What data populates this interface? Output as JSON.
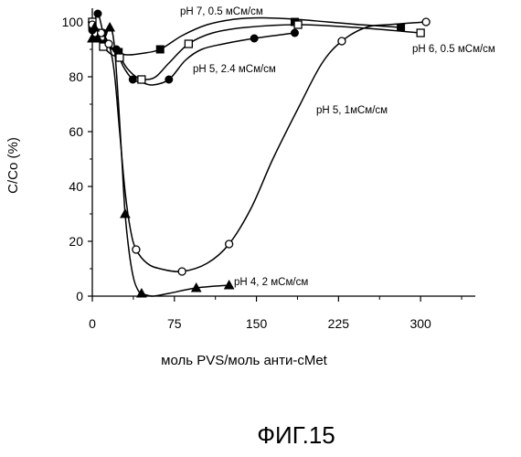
{
  "chart_data": {
    "type": "line",
    "xlabel": "моль PVS/моль анти-cMet",
    "ylabel": "C/Co (%)",
    "xlim": [
      0,
      350
    ],
    "ylim": [
      0,
      105
    ],
    "xticks": [
      "0",
      "75",
      "150",
      "225",
      "300"
    ],
    "yticks": [
      "0",
      "20",
      "40",
      "60",
      "80",
      "100"
    ],
    "grid": false,
    "series": [
      {
        "name": "pH 7, 0.5 мСм/см",
        "marker": "filled-square",
        "x": [
          0,
          3,
          12,
          24,
          62,
          185,
          282
        ],
        "y": [
          99,
          94,
          92,
          89,
          90,
          100,
          98
        ],
        "curve_x": [
          0,
          3,
          12,
          22,
          32,
          45,
          62,
          82,
          105,
          130,
          155,
          185,
          215,
          245,
          282
        ],
        "curve_y": [
          99,
          94,
          92,
          89,
          88,
          88.5,
          90,
          95,
          99,
          101,
          101.5,
          101,
          100,
          99,
          98
        ]
      },
      {
        "name": "pH 6, 0.5 мСм/см",
        "marker": "open-square",
        "x": [
          0,
          3,
          10,
          25,
          45,
          88,
          188,
          300
        ],
        "y": [
          100,
          96,
          91,
          87,
          79,
          92,
          99,
          96
        ],
        "curve_x": [
          0,
          3,
          10,
          18,
          25,
          32,
          40,
          48,
          58,
          70,
          88,
          110,
          140,
          188,
          240,
          300
        ],
        "curve_y": [
          100,
          96,
          91,
          88,
          87,
          83,
          80,
          79,
          80,
          85,
          92,
          96,
          98,
          99,
          98,
          96
        ]
      },
      {
        "name": "pH 5, 2.4 мСм/см",
        "marker": "filled-circle",
        "x": [
          0,
          5,
          10,
          22,
          37,
          70,
          148,
          185
        ],
        "y": [
          97,
          103,
          96,
          90,
          79,
          79,
          94,
          96
        ],
        "curve_x": [
          0,
          5,
          10,
          16,
          22,
          28,
          37,
          45,
          55,
          70,
          85,
          100,
          120,
          148,
          185
        ],
        "curve_y": [
          97,
          103,
          96,
          91,
          90,
          84,
          79,
          78,
          77,
          79,
          86,
          90,
          92,
          94,
          96
        ]
      },
      {
        "name": "pH 5, 1мСм/см",
        "marker": "open-circle",
        "x": [
          0,
          8,
          15,
          40,
          82,
          125,
          228,
          305
        ],
        "y": [
          99,
          96,
          92,
          17,
          9,
          19,
          93,
          100
        ],
        "curve_x": [
          0,
          8,
          15,
          20,
          25,
          30,
          35,
          40,
          50,
          62,
          82,
          105,
          125,
          145,
          165,
          190,
          210,
          228,
          250,
          270,
          305
        ],
        "curve_y": [
          99,
          96,
          92,
          82,
          60,
          38,
          24,
          17,
          12,
          10,
          9,
          12,
          19,
          32,
          50,
          70,
          85,
          93,
          98,
          99,
          100
        ],
        "draw_marker_each": [
          true,
          true,
          true,
          true,
          true,
          true,
          true,
          true
        ]
      },
      {
        "name": "pH 4, 2 мСм/см",
        "marker": "filled-triangle",
        "x": [
          0,
          2,
          5,
          16,
          30,
          45,
          95,
          125
        ],
        "y": [
          94,
          98,
          94,
          98,
          30,
          1,
          3,
          4
        ],
        "curve_x": [
          0,
          2,
          5,
          10,
          16,
          20,
          24,
          27,
          30,
          34,
          38,
          42,
          45,
          55,
          70,
          95,
          125
        ],
        "curve_y": [
          94,
          98,
          94,
          93,
          98,
          92,
          70,
          50,
          30,
          15,
          6,
          2,
          1,
          0,
          1,
          3,
          4
        ]
      }
    ]
  },
  "caption": "ФИГ.15"
}
